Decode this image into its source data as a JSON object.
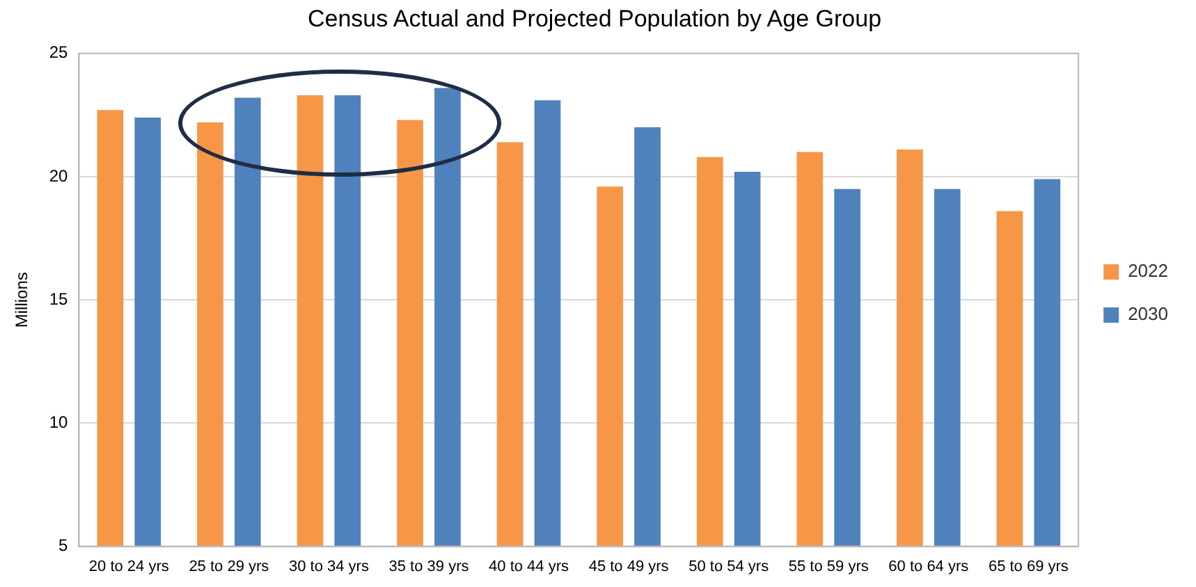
{
  "chart_data": {
    "type": "bar",
    "title": "Census Actual and Projected Population by Age Group",
    "ylabel": "Millions",
    "categories": [
      "20 to 24 yrs",
      "25 to 29 yrs",
      "30 to 34 yrs",
      "35 to 39 yrs",
      "40 to 44 yrs",
      "45 to 49 yrs",
      "50 to 54 yrs",
      "55 to 59 yrs",
      "60 to 64 yrs",
      "65 to 69 yrs"
    ],
    "series": [
      {
        "name": "2022",
        "color": "#f79646",
        "values": [
          22.7,
          22.2,
          23.3,
          22.3,
          21.4,
          19.6,
          20.8,
          21.0,
          21.1,
          18.6
        ]
      },
      {
        "name": "2030",
        "color": "#4f81bd",
        "values": [
          22.4,
          23.2,
          23.3,
          23.6,
          23.1,
          22.0,
          20.2,
          19.5,
          19.5,
          19.9
        ]
      }
    ],
    "ylim": [
      5,
      25
    ],
    "yticks": [
      5,
      10,
      15,
      20,
      25
    ],
    "grid": "y",
    "legend": "right"
  }
}
